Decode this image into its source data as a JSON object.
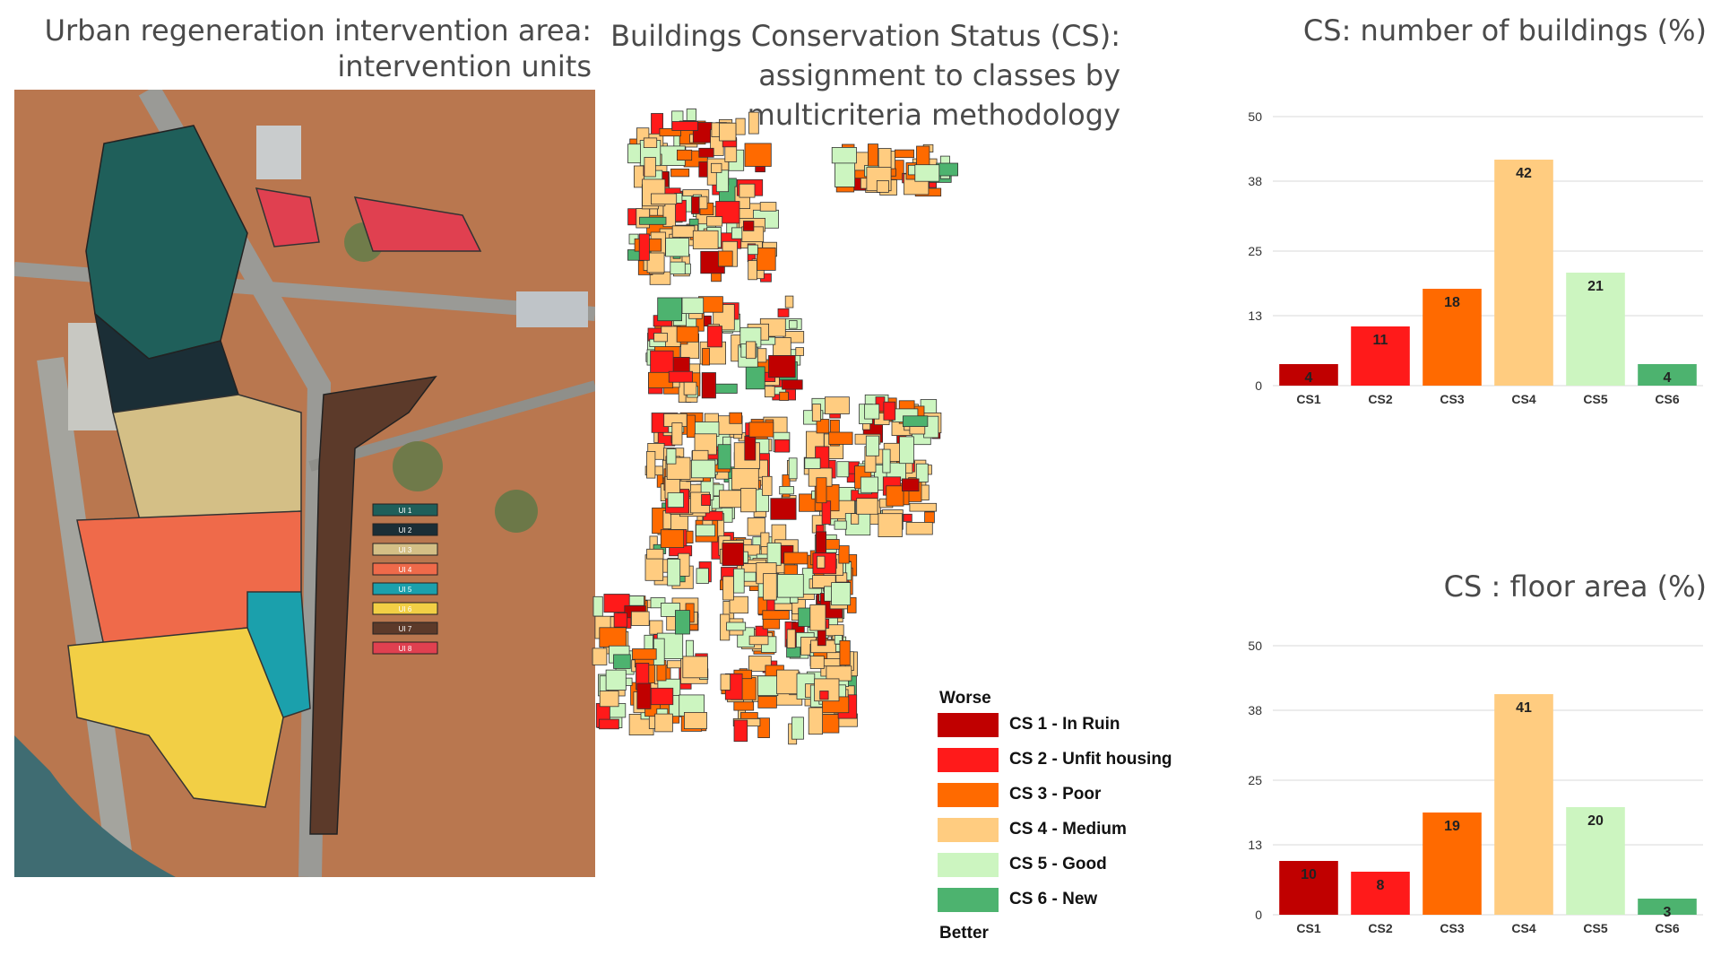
{
  "titles": {
    "left_line1": "Urban regeneration intervention area:",
    "left_line2": "intervention units",
    "mid_line1": "Buildings Conservation Status (CS):",
    "mid_line2": "assignment to  classes by",
    "mid_line3": "multicriteria methodology"
  },
  "intervention_units": {
    "labels": [
      "UI 1",
      "UI 2",
      "UI 3",
      "UI 4",
      "UI 5",
      "UI 6",
      "UI 7",
      "UI 8"
    ],
    "colors": [
      "#1f5f5a",
      "#1b2e36",
      "#d4bf86",
      "#ef6a4a",
      "#1ba0ac",
      "#f2cf45",
      "#5c3a2a",
      "#e04050"
    ]
  },
  "legend": {
    "worse": "Worse",
    "better": "Better",
    "items": [
      {
        "label": "CS 1 - In Ruin",
        "color": "#c00000"
      },
      {
        "label": "CS 2 - Unfit housing",
        "color": "#ff1a1a"
      },
      {
        "label": "CS 3 - Poor",
        "color": "#ff6a00"
      },
      {
        "label": "CS 4 - Medium",
        "color": "#ffcc80"
      },
      {
        "label": "CS 5 - Good",
        "color": "#ccf5c0"
      },
      {
        "label": "CS 6 - New",
        "color": "#4db36f"
      }
    ]
  },
  "chart_data": [
    {
      "type": "bar",
      "title": "CS: number of buildings (%)",
      "categories": [
        "CS1",
        "CS2",
        "CS3",
        "CS4",
        "CS5",
        "CS6"
      ],
      "values": [
        4,
        11,
        18,
        42,
        21,
        4
      ],
      "value_labels": [
        "4",
        "11",
        "18",
        "42",
        "21",
        "4"
      ],
      "colors": [
        "#c00000",
        "#ff1a1a",
        "#ff6a00",
        "#ffcc80",
        "#ccf5c0",
        "#4db36f"
      ],
      "yticks": [
        "0",
        "13",
        "25",
        "38",
        "50"
      ],
      "ylim": [
        0,
        50
      ],
      "grid": true
    },
    {
      "type": "bar",
      "title": "CS : floor area (%)",
      "categories": [
        "CS1",
        "CS2",
        "CS3",
        "CS4",
        "CS5",
        "CS6"
      ],
      "values": [
        10,
        8,
        19,
        41,
        20,
        3
      ],
      "value_labels": [
        "10",
        "8",
        "19",
        "41",
        "20",
        "3"
      ],
      "colors": [
        "#c00000",
        "#ff1a1a",
        "#ff6a00",
        "#ffcc80",
        "#ccf5c0",
        "#4db36f"
      ],
      "yticks": [
        "0",
        "13",
        "25",
        "38",
        "50"
      ],
      "ylim": [
        0,
        50
      ],
      "grid": true
    }
  ]
}
